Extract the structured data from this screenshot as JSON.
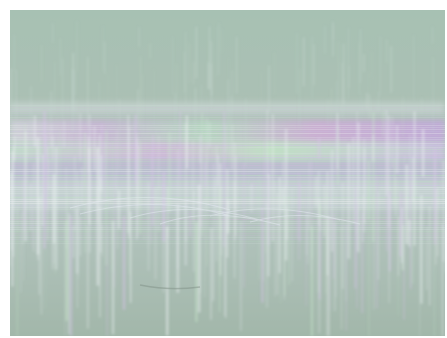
{
  "image": {
    "subject": "noisy-interference-photo",
    "colors": {
      "base": "#a9beb2",
      "top": "#a8c2b3",
      "band_pink": "#d4a9d6",
      "band_violet": "#b9a6e0",
      "band_green": "#b6e3b8",
      "streak": "#eef3f5",
      "border": "#ffffff"
    }
  }
}
